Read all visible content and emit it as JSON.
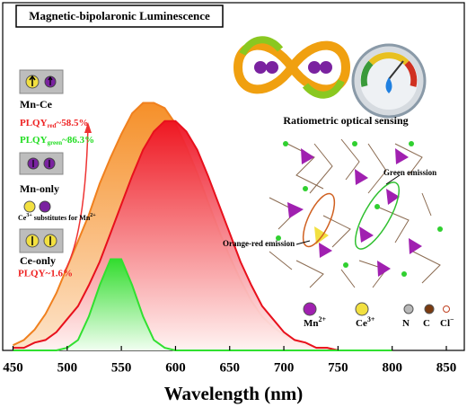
{
  "chart_data": {
    "type": "area",
    "title": "Magnetic-bipolaronic Luminescence",
    "xlabel": "Wavelength (nm)",
    "x": [
      450,
      460,
      470,
      480,
      490,
      500,
      510,
      520,
      530,
      540,
      550,
      560,
      570,
      580,
      590,
      600,
      610,
      620,
      630,
      640,
      650,
      660,
      670,
      680,
      690,
      700,
      710,
      720,
      730,
      740,
      750,
      760,
      770,
      780,
      790,
      800
    ],
    "xlim": [
      450,
      850
    ],
    "xticks": [
      450,
      500,
      550,
      600,
      650,
      700,
      750,
      800,
      850
    ],
    "ylim": [
      0,
      1
    ],
    "series": [
      {
        "color": "#f0801e",
        "fill": "#f7a04a",
        "values": [
          0.02,
          0.04,
          0.08,
          0.14,
          0.22,
          0.32,
          0.42,
          0.52,
          0.64,
          0.74,
          0.83,
          0.91,
          0.95,
          0.95,
          0.93,
          0.87,
          0.78,
          0.68,
          0.57,
          0.46,
          0.36,
          0.27,
          0.19,
          0.13,
          0.09,
          0.06,
          0.04,
          0.02,
          0.01,
          0.01,
          0,
          0,
          0,
          0,
          0,
          0
        ]
      },
      {
        "color": "#e8101c",
        "fill": "#f01020",
        "values": [
          0.01,
          0.01,
          0.03,
          0.04,
          0.07,
          0.12,
          0.17,
          0.25,
          0.34,
          0.45,
          0.56,
          0.67,
          0.77,
          0.84,
          0.88,
          0.88,
          0.84,
          0.77,
          0.67,
          0.56,
          0.45,
          0.34,
          0.25,
          0.17,
          0.12,
          0.07,
          0.04,
          0.03,
          0.01,
          0.01,
          0,
          0,
          0,
          0,
          0,
          0
        ]
      },
      {
        "color": "#30e030",
        "fill": "#30e030",
        "values": [
          0,
          0,
          0,
          0,
          0,
          0.01,
          0.04,
          0.13,
          0.25,
          0.35,
          0.35,
          0.25,
          0.13,
          0.04,
          0.01,
          0,
          0,
          0,
          0,
          0,
          0,
          0,
          0,
          0,
          0,
          0,
          0,
          0,
          0,
          0,
          0,
          0,
          0,
          0,
          0,
          0
        ]
      }
    ],
    "annotations": {
      "mn_ce": "Mn-Ce",
      "plqy_red": {
        "prefix": "PLQY",
        "sub": "red",
        "suffix": "~58.5%"
      },
      "plqy_green": {
        "prefix": "PLQY",
        "sub": "green",
        "suffix": "~86.3%"
      },
      "mn_only": "Mn-only",
      "substitution": {
        "a": "Ce",
        "a_sup": "3+",
        "mid": " substitutes for Mn",
        "b_sup": "2+"
      },
      "ce_only": "Ce-only",
      "plqy_ce": "PLQY~1.6%",
      "sensing": "Ratiometric optical sensing",
      "green_emission": "Green emission",
      "orange_emission": "Orange-red emission",
      "structure_legend": [
        {
          "text": "Mn",
          "sup": "2+"
        },
        {
          "text": "Ce",
          "sup": "3+"
        },
        {
          "text": "N"
        },
        {
          "text": "C"
        },
        {
          "text": "Cl",
          "sup": "−"
        }
      ]
    }
  }
}
